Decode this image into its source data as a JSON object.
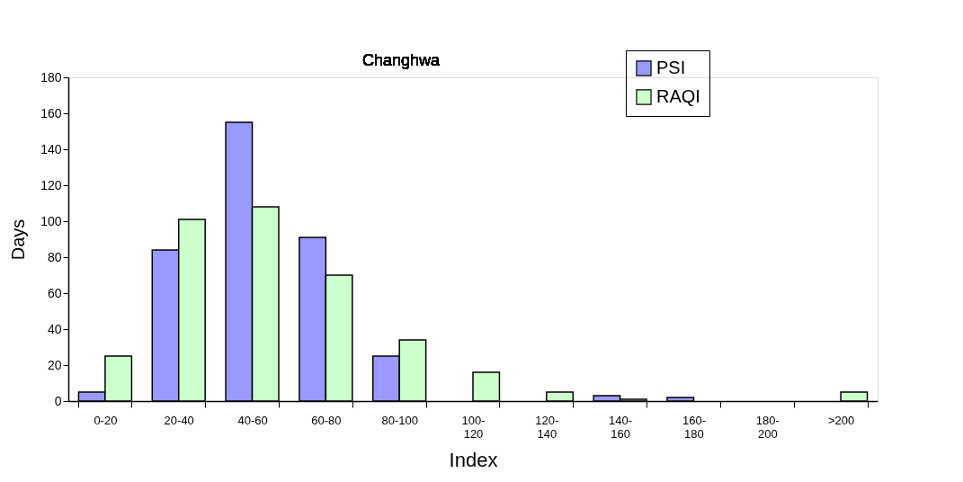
{
  "chart_data": {
    "type": "bar",
    "title": "Changhwa",
    "xlabel": "Index",
    "ylabel": "Days",
    "categories": [
      "0-20",
      "20-40",
      "40-60",
      "60-80",
      "80-100",
      "100-\n120",
      "120-\n140",
      "140-\n160",
      "160-\n180",
      "180-\n200",
      ">200"
    ],
    "series": [
      {
        "name": "PSI",
        "color": "#9999ff",
        "values": [
          5,
          84,
          155,
          91,
          25,
          0,
          0,
          3,
          2,
          0,
          0
        ]
      },
      {
        "name": "RAQI",
        "color": "#ccffcc",
        "values": [
          25,
          101,
          108,
          70,
          34,
          16,
          5,
          1,
          0,
          0,
          5
        ]
      }
    ],
    "ylim": [
      0,
      180
    ],
    "yticks": [
      0,
      20,
      40,
      60,
      80,
      100,
      120,
      140,
      160,
      180
    ],
    "grid": false,
    "legend": "top right"
  }
}
